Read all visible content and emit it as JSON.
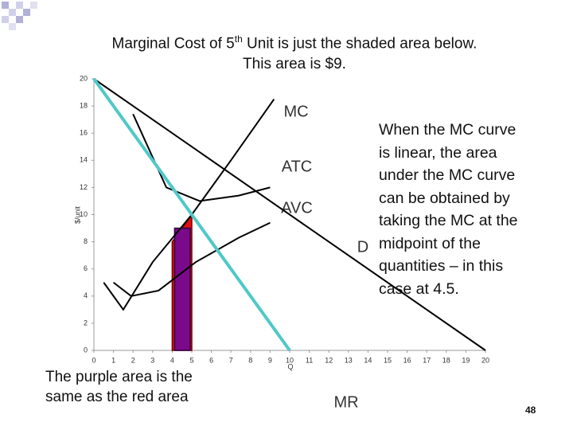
{
  "chart_data": {
    "type": "line",
    "title_parts": [
      "Marginal Cost of 5",
      "th",
      " Unit is just the shaded area below."
    ],
    "subtitle": "This area is $9.",
    "x_label": "Q",
    "y_label": "$/unit",
    "xlim": [
      0,
      20
    ],
    "ylim": [
      0,
      20
    ],
    "xticks": [
      0,
      1,
      2,
      3,
      4,
      5,
      6,
      7,
      8,
      9,
      10,
      11,
      12,
      13,
      14,
      15,
      16,
      17,
      18,
      19,
      20
    ],
    "yticks": [
      0,
      2,
      4,
      6,
      8,
      10,
      12,
      14,
      16,
      18,
      20
    ],
    "series": [
      {
        "name": "MC",
        "color": "#000000",
        "x": [
          0.5,
          1.5,
          3,
          5,
          7,
          9.2
        ],
        "values": [
          5,
          3,
          6.5,
          10,
          14,
          18.5
        ]
      },
      {
        "name": "ATC",
        "color": "#000000",
        "x": [
          2,
          3.7,
          5.4,
          7.4,
          9
        ],
        "values": [
          17.4,
          12,
          11,
          11.4,
          12
        ]
      },
      {
        "name": "AVC",
        "color": "#000000",
        "x": [
          1,
          1.9,
          3.3,
          5.2,
          7.4,
          9
        ],
        "values": [
          5,
          4,
          4.4,
          6.5,
          8.3,
          9.4
        ]
      },
      {
        "name": "D",
        "color": "#000000",
        "x": [
          0,
          20
        ],
        "values": [
          20,
          0
        ]
      },
      {
        "name": "MR",
        "color": "#4fc8c8",
        "x": [
          0,
          10
        ],
        "values": [
          20,
          0
        ]
      }
    ],
    "shaded": [
      {
        "color": "#e01010",
        "x": [
          4,
          5
        ],
        "values": [
          8,
          10
        ]
      },
      {
        "color": "#7a0a8a",
        "x": [
          4,
          5
        ],
        "value": 9
      }
    ],
    "note_right": [
      "When the MC curve",
      "is linear, the area",
      "under the MC curve",
      "can be obtained by",
      "taking the MC at the",
      "midpoint of the",
      "quantities – in this",
      "case at 4.5."
    ],
    "note_left": [
      "The purple area is the",
      "same as the red area"
    ],
    "page_number": "48"
  }
}
